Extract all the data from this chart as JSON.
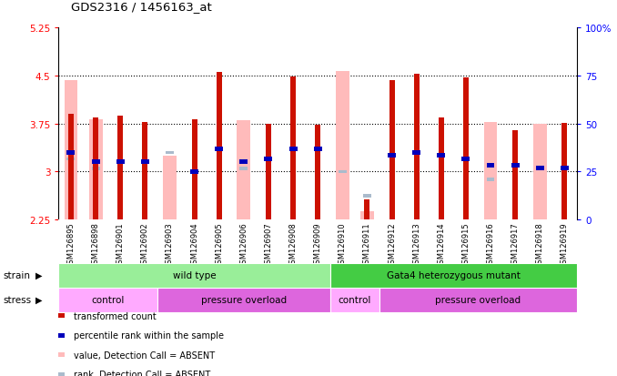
{
  "title": "GDS2316 / 1456163_at",
  "samples": [
    "GSM126895",
    "GSM126898",
    "GSM126901",
    "GSM126902",
    "GSM126903",
    "GSM126904",
    "GSM126905",
    "GSM126906",
    "GSM126907",
    "GSM126908",
    "GSM126909",
    "GSM126910",
    "GSM126911",
    "GSM126912",
    "GSM126913",
    "GSM126914",
    "GSM126915",
    "GSM126916",
    "GSM126917",
    "GSM126918",
    "GSM126919"
  ],
  "red_bars": [
    3.9,
    3.85,
    3.87,
    3.78,
    null,
    3.82,
    4.56,
    null,
    3.75,
    4.48,
    3.73,
    null,
    2.57,
    4.42,
    4.52,
    3.85,
    4.47,
    null,
    3.65,
    null,
    3.76
  ],
  "pink_bars": [
    4.43,
    3.82,
    null,
    null,
    3.25,
    null,
    null,
    3.8,
    null,
    null,
    null,
    4.57,
    2.38,
    null,
    null,
    null,
    null,
    3.78,
    null,
    3.75,
    null
  ],
  "blue_bars": [
    3.3,
    3.15,
    3.15,
    3.15,
    null,
    3.0,
    3.35,
    3.15,
    3.2,
    3.35,
    3.35,
    null,
    null,
    3.25,
    3.3,
    3.25,
    3.2,
    3.1,
    3.1,
    3.05,
    3.05
  ],
  "lightblue_bars": [
    3.2,
    3.05,
    null,
    null,
    3.3,
    null,
    null,
    3.05,
    null,
    null,
    null,
    3.0,
    2.62,
    null,
    null,
    null,
    null,
    2.88,
    null,
    null,
    null
  ],
  "ylim_left": [
    2.25,
    5.25
  ],
  "yticks_left": [
    2.25,
    3.0,
    3.75,
    4.5,
    5.25
  ],
  "ytick_labels_left": [
    "2.25",
    "3",
    "3.75",
    "4.5",
    "5.25"
  ],
  "yticks_right": [
    0,
    25,
    50,
    75,
    100
  ],
  "ytick_labels_right": [
    "0",
    "25",
    "50",
    "75",
    "100%"
  ],
  "hlines": [
    3.0,
    3.75,
    4.5
  ],
  "strain_groups": [
    {
      "label": "wild type",
      "start": 0,
      "end": 11,
      "color": "#99ee99"
    },
    {
      "label": "Gata4 heterozygous mutant",
      "start": 11,
      "end": 21,
      "color": "#44cc44"
    }
  ],
  "stress_groups": [
    {
      "label": "control",
      "start": 0,
      "end": 4,
      "color": "#ffaaff"
    },
    {
      "label": "pressure overload",
      "start": 4,
      "end": 11,
      "color": "#dd66dd"
    },
    {
      "label": "control",
      "start": 11,
      "end": 13,
      "color": "#ffaaff"
    },
    {
      "label": "pressure overload",
      "start": 13,
      "end": 21,
      "color": "#dd66dd"
    }
  ],
  "base_value": 2.25,
  "red_color": "#cc1100",
  "pink_color": "#ffbbbb",
  "blue_color": "#0000bb",
  "lightblue_color": "#aabbcc",
  "gray_bg": "#d4d4d4",
  "white": "#ffffff"
}
